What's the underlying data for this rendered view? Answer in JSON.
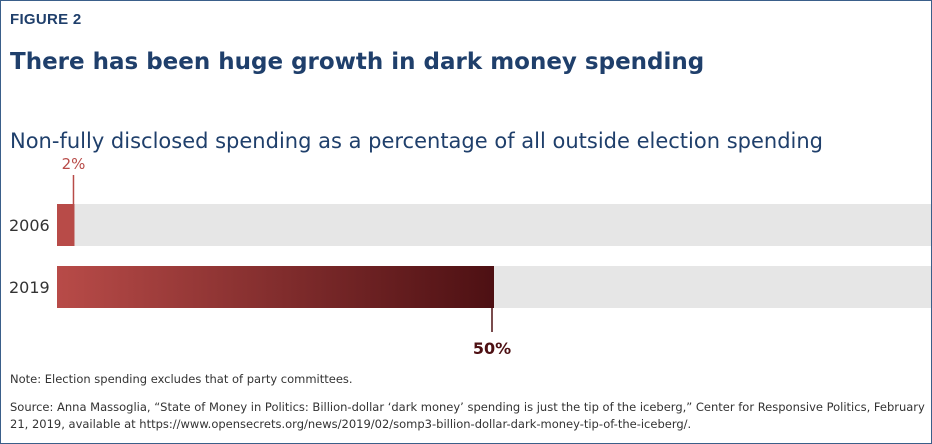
{
  "figure": {
    "label": "FIGURE 2",
    "title": "There has been huge growth in dark money spending",
    "subtitle": "Non-fully disclosed spending as a percentage of all outside election spending",
    "note": "Note: Election spending excludes that of party committees.",
    "source": "Source: Anna Massoglia, “State of Money in Politics: Billion-dollar ‘dark money’ spending is just the tip of the iceberg,” Center for Responsive Politics, February 21, 2019, available at https://www.opensecrets.org/news/2019/02/somp3-billion-dollar-dark-money-tip-of-the-iceberg/."
  },
  "colors": {
    "heading": "#1f3f6b",
    "track": "#e6e6e6",
    "bar_2006": "#b84b48",
    "bar_2019_start": "#b84b48",
    "bar_2019_end": "#4d1013",
    "label_2006": "#b84b48",
    "label_2019": "#4d1013"
  },
  "chart_data": {
    "type": "bar",
    "orientation": "horizontal",
    "categories": [
      "2006",
      "2019"
    ],
    "values": [
      2,
      50
    ],
    "value_labels": [
      "2%",
      "50%"
    ],
    "xlim": [
      0,
      100
    ],
    "grid": false
  }
}
